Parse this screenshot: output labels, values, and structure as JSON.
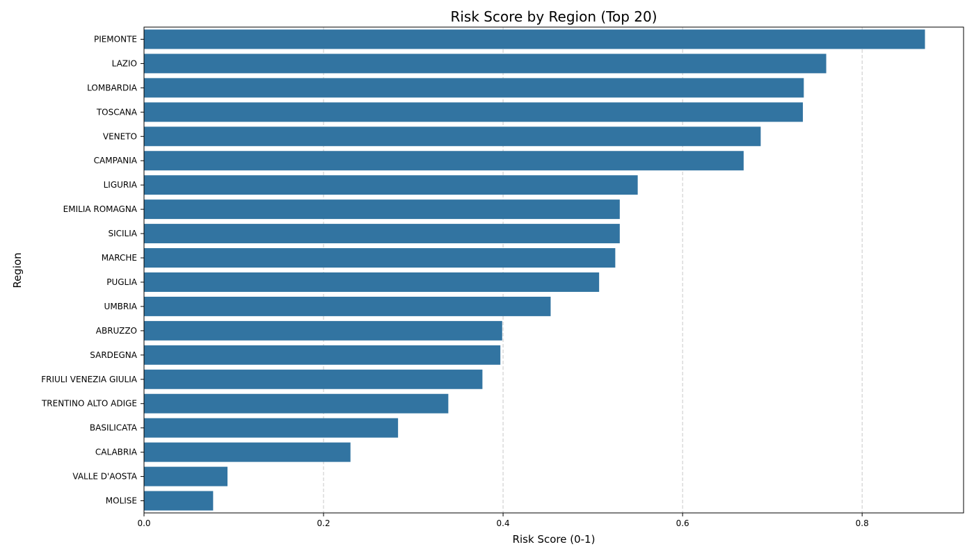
{
  "chart_data": {
    "type": "bar",
    "orientation": "horizontal",
    "title": "Risk Score by Region (Top 20)",
    "xlabel": "Risk Score (0-1)",
    "ylabel": "Region",
    "categories": [
      "PIEMONTE",
      "LAZIO",
      "LOMBARDIA",
      "TOSCANA",
      "VENETO",
      "CAMPANIA",
      "LIGURIA",
      "EMILIA ROMAGNA",
      "SICILIA",
      "MARCHE",
      "PUGLIA",
      "UMBRIA",
      "ABRUZZO",
      "SARDEGNA",
      "FRIULI VENEZIA GIULIA",
      "TRENTINO ALTO ADIGE",
      "BASILICATA",
      "CALABRIA",
      "VALLE D'AOSTA",
      "MOLISE"
    ],
    "values": [
      0.87,
      0.76,
      0.735,
      0.734,
      0.687,
      0.668,
      0.55,
      0.53,
      0.53,
      0.525,
      0.507,
      0.453,
      0.399,
      0.397,
      0.377,
      0.339,
      0.283,
      0.23,
      0.093,
      0.077
    ],
    "xlim": [
      0,
      0.913
    ],
    "xticks": [
      0.0,
      0.2,
      0.4,
      0.6,
      0.8
    ],
    "xtick_labels": [
      "0.0",
      "0.2",
      "0.4",
      "0.6",
      "0.8"
    ],
    "grid": "x-dashed",
    "legend": "none",
    "bar_color": "#3274a1",
    "grid_color": "#c8c8c8"
  }
}
